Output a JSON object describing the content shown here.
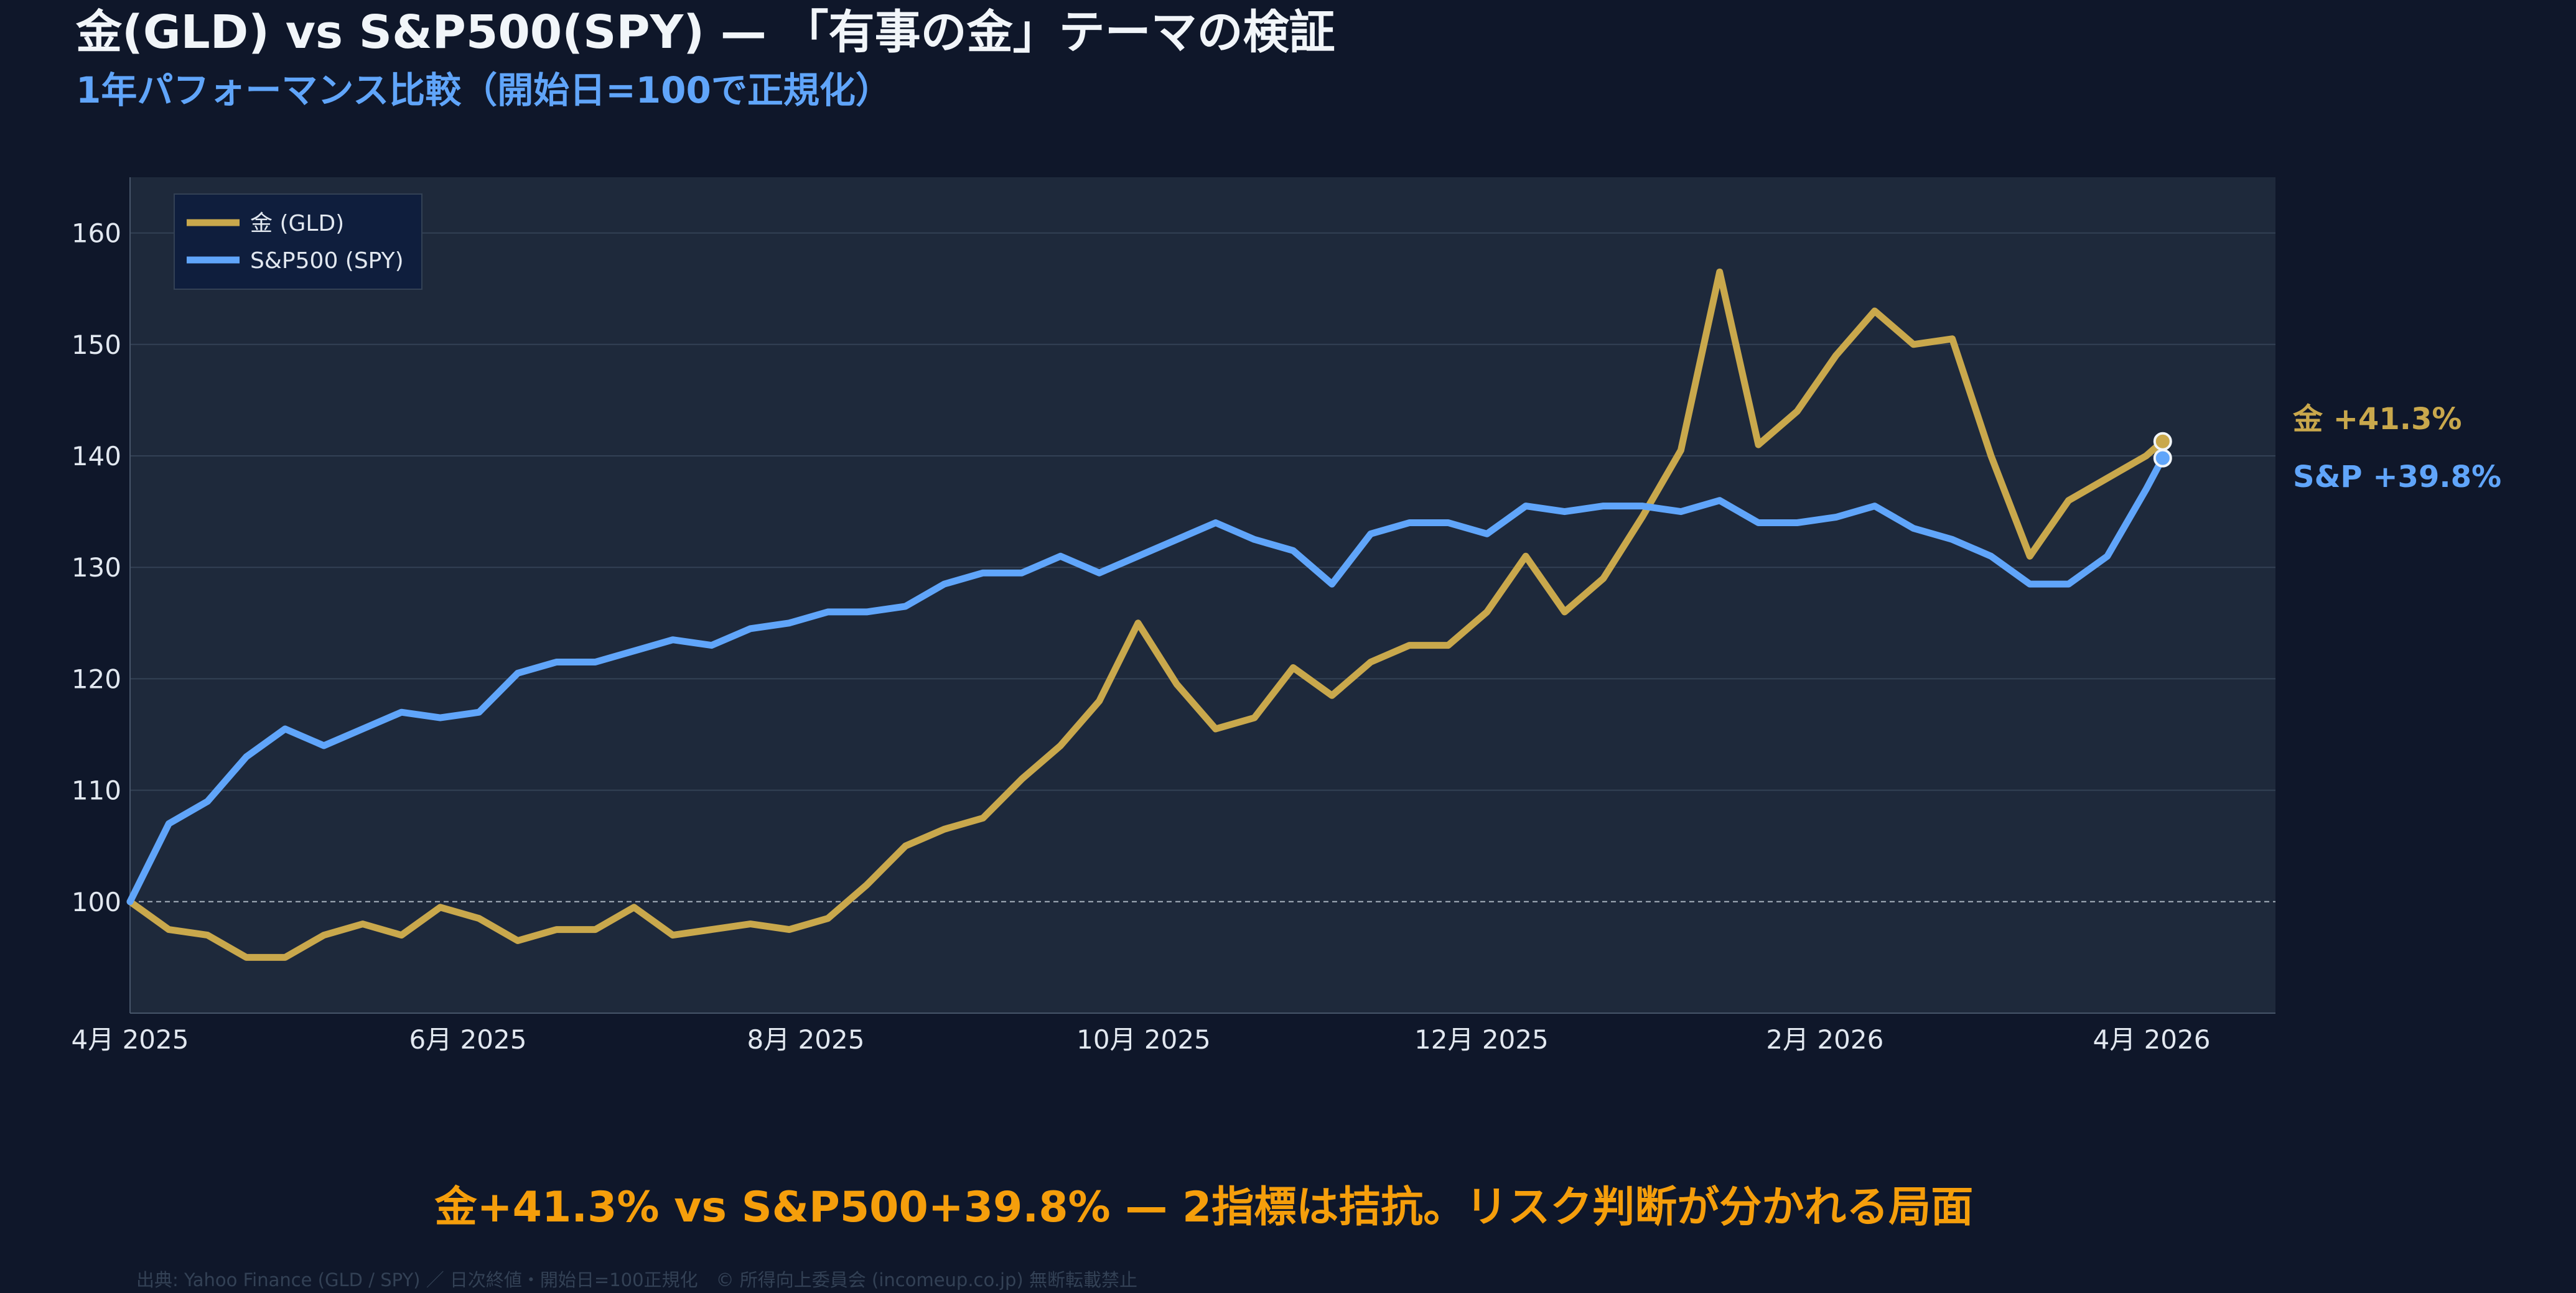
{
  "header": {
    "title": "金(GLD) vs S&P500(SPY) — 「有事の金」テーマの検証",
    "subtitle": "1年パフォーマンス比較（開始日=100で正規化）"
  },
  "headline": "金+41.3% vs S&P500+39.8% — 2指標は拮抗。リスク判断が分かれる局面",
  "footer": "出典: Yahoo Finance (GLD / SPY) ／ 日次終値・開始日=100正規化　© 所得向上委員会 (incomeup.co.jp) 無断転載禁止",
  "colors": {
    "background": "#0f172a",
    "plot_bg": "#1e293b",
    "gold": "#c9a84c",
    "spy": "#60a5fa",
    "headline": "#f59e0b"
  },
  "chart_data": {
    "type": "line",
    "ylim": [
      90,
      165
    ],
    "yticks": [
      100,
      110,
      120,
      130,
      140,
      150,
      160
    ],
    "xlim": [
      "2025-04-01",
      "2026-04-22"
    ],
    "xticks": [
      {
        "date": "2025-04-01",
        "label": "4月 2025"
      },
      {
        "date": "2025-06-01",
        "label": "6月 2025"
      },
      {
        "date": "2025-08-01",
        "label": "8月 2025"
      },
      {
        "date": "2025-10-01",
        "label": "10月 2025"
      },
      {
        "date": "2025-12-01",
        "label": "12月 2025"
      },
      {
        "date": "2026-02-01",
        "label": "2月 2026"
      },
      {
        "date": "2026-04-01",
        "label": "4月 2026"
      }
    ],
    "grid": true,
    "reference_line": 100,
    "legend_position": "top-left",
    "dates": [
      "2025-04-01",
      "2025-04-08",
      "2025-04-15",
      "2025-04-22",
      "2025-04-29",
      "2025-05-06",
      "2025-05-13",
      "2025-05-20",
      "2025-05-27",
      "2025-06-03",
      "2025-06-10",
      "2025-06-17",
      "2025-06-24",
      "2025-07-01",
      "2025-07-08",
      "2025-07-15",
      "2025-07-22",
      "2025-07-29",
      "2025-08-05",
      "2025-08-12",
      "2025-08-19",
      "2025-08-26",
      "2025-09-02",
      "2025-09-09",
      "2025-09-16",
      "2025-09-23",
      "2025-09-30",
      "2025-10-07",
      "2025-10-14",
      "2025-10-21",
      "2025-10-28",
      "2025-11-04",
      "2025-11-11",
      "2025-11-18",
      "2025-11-25",
      "2025-12-02",
      "2025-12-09",
      "2025-12-16",
      "2025-12-23",
      "2025-12-30",
      "2026-01-06",
      "2026-01-13",
      "2026-01-20",
      "2026-01-27",
      "2026-02-03",
      "2026-02-10",
      "2026-02-17",
      "2026-02-24",
      "2026-03-03",
      "2026-03-10",
      "2026-03-17",
      "2026-03-24",
      "2026-03-31",
      "2026-04-03"
    ],
    "series": [
      {
        "name": "金 (GLD)",
        "color": "#c9a84c",
        "end_label": "金 +41.3%",
        "values": [
          100,
          97.5,
          97,
          95,
          95,
          97,
          98,
          97,
          99.5,
          98.5,
          96.5,
          97.5,
          97.5,
          99.5,
          97,
          97.5,
          98,
          97.5,
          98.5,
          101.5,
          105,
          106.5,
          107.5,
          111,
          114,
          118,
          125,
          119.5,
          115.5,
          116.5,
          121,
          118.5,
          121.5,
          123,
          123,
          126,
          131,
          126,
          129,
          134.5,
          140.5,
          156.5,
          141,
          144,
          149,
          153,
          150,
          150.5,
          140,
          131,
          136,
          138,
          140,
          141.3
        ]
      },
      {
        "name": "S&P500 (SPY)",
        "color": "#60a5fa",
        "end_label": "S&P +39.8%",
        "values": [
          100,
          107,
          109,
          113,
          115.5,
          114,
          115.5,
          117,
          116.5,
          117,
          120.5,
          121.5,
          121.5,
          122.5,
          123.5,
          123,
          124.5,
          125,
          126,
          126,
          126.5,
          128.5,
          129.5,
          129.5,
          131,
          129.5,
          131,
          132.5,
          134,
          132.5,
          131.5,
          128.5,
          133,
          134,
          134,
          133,
          135.5,
          135,
          135.5,
          135.5,
          135,
          136,
          134,
          134,
          134.5,
          135.5,
          133.5,
          132.5,
          131,
          128.5,
          128.5,
          131,
          137,
          139.8
        ]
      }
    ]
  }
}
